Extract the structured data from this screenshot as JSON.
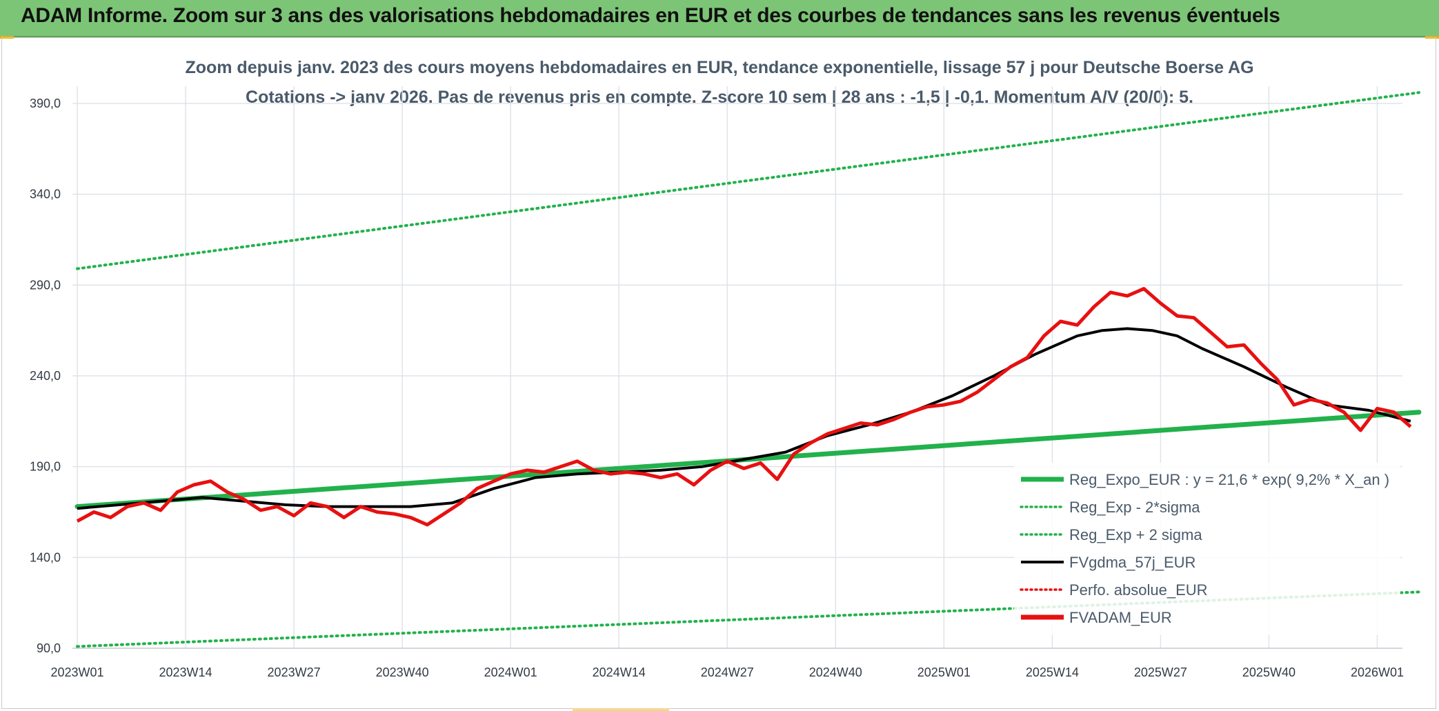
{
  "banner": {
    "title": "ADAM Informe. Zoom sur 3 ans des valorisations hebdomadaires en EUR et des courbes de tendances sans les revenus éventuels"
  },
  "colors": {
    "banner": "#7cc576",
    "reg_expo": "#22b14c",
    "band": "#22b14c",
    "fvgdma": "#000000",
    "perfo": "#e81010",
    "fvadam": "#e81010",
    "grid": "#dfe3e8"
  },
  "chart_data": {
    "type": "line",
    "title_line1": "Zoom depuis janv. 2023 des cours moyens hebdomadaires en EUR, tendance exponentielle, lissage 57 j pour Deutsche Boerse AG",
    "title_line2": "Cotations -> janv 2026. Pas de revenus pris en compte. Z-score 10 sem | 28 ans : -1,5 | -0,1. Momentum A/V (20/0): 5.",
    "xlabel": "",
    "ylabel": "",
    "ylim": [
      90,
      390
    ],
    "y_ticks": [
      "90,0",
      "140,0",
      "190,0",
      "240,0",
      "290,0",
      "340,0",
      "390,0"
    ],
    "y_tick_values": [
      90,
      140,
      190,
      240,
      290,
      340,
      390
    ],
    "x_ticks": [
      "2023W01",
      "2023W14",
      "2023W27",
      "2023W40",
      "2024W01",
      "2024W14",
      "2024W27",
      "2024W40",
      "2025W01",
      "2025W14",
      "2025W27",
      "2025W40",
      "2026W01"
    ],
    "x_tick_weeks": [
      0,
      13,
      26,
      39,
      52,
      65,
      78,
      91,
      104,
      117,
      130,
      143,
      156
    ],
    "x_range_weeks": [
      0,
      161
    ],
    "grid": true,
    "legend_position": "right",
    "legend": [
      {
        "label": "Reg_Expo_EUR : y = 21,6 * exp( 9,2% *  X_an )",
        "style": "solid-thick",
        "color": "#22b14c"
      },
      {
        "label": "Reg_Exp - 2*sigma",
        "style": "dotted",
        "color": "#22b14c"
      },
      {
        "label": "Reg_Exp + 2 sigma",
        "style": "dotted",
        "color": "#22b14c"
      },
      {
        "label": "FVgdma_57j_EUR",
        "style": "solid",
        "color": "#000000"
      },
      {
        "label": "Perfo. absolue_EUR",
        "style": "dotted",
        "color": "#e81010"
      },
      {
        "label": "FVADAM_EUR",
        "style": "solid-thick",
        "color": "#e81010"
      }
    ],
    "series": [
      {
        "name": "Reg_Expo_EUR : y = 21,6 * exp( 9,2% *  X_an )",
        "x": [
          0,
          161
        ],
        "y": [
          168,
          220
        ]
      },
      {
        "name": "Reg_Exp - 2*sigma",
        "x": [
          0,
          161
        ],
        "y": [
          91,
          121
        ]
      },
      {
        "name": "Reg_Exp + 2 sigma",
        "x": [
          0,
          161
        ],
        "y": [
          299,
          396
        ]
      },
      {
        "name": "FVgdma_57j_EUR",
        "x": [
          0,
          5,
          10,
          15,
          20,
          25,
          30,
          35,
          40,
          45,
          50,
          55,
          60,
          65,
          70,
          75,
          80,
          85,
          90,
          95,
          100,
          105,
          110,
          115,
          120,
          123,
          126,
          129,
          132,
          135,
          140,
          145,
          150,
          155,
          160
        ],
        "y": [
          167,
          169,
          171,
          173,
          171,
          169,
          168,
          168,
          168,
          170,
          178,
          184,
          186,
          187,
          188,
          190,
          194,
          198,
          207,
          213,
          220,
          229,
          240,
          252,
          262,
          265,
          266,
          265,
          262,
          255,
          245,
          234,
          224,
          221,
          215
        ]
      },
      {
        "name": "FVADAM_EUR",
        "x": [
          0,
          2,
          4,
          6,
          8,
          10,
          12,
          14,
          16,
          18,
          20,
          22,
          24,
          26,
          28,
          30,
          32,
          34,
          36,
          38,
          40,
          42,
          44,
          46,
          48,
          50,
          52,
          54,
          56,
          58,
          60,
          62,
          64,
          66,
          68,
          70,
          72,
          74,
          76,
          78,
          80,
          82,
          84,
          86,
          88,
          90,
          92,
          94,
          96,
          98,
          100,
          102,
          104,
          106,
          108,
          110,
          112,
          114,
          116,
          118,
          120,
          122,
          124,
          126,
          128,
          130,
          132,
          134,
          136,
          138,
          140,
          142,
          144,
          146,
          148,
          150,
          152,
          154,
          156,
          158,
          160
        ],
        "y": [
          160,
          165,
          162,
          168,
          170,
          166,
          176,
          180,
          182,
          176,
          172,
          166,
          168,
          163,
          170,
          168,
          162,
          168,
          165,
          164,
          162,
          158,
          164,
          170,
          178,
          182,
          186,
          188,
          187,
          190,
          193,
          188,
          186,
          187,
          186,
          184,
          186,
          180,
          188,
          193,
          189,
          192,
          183,
          197,
          203,
          208,
          211,
          214,
          213,
          216,
          220,
          223,
          224,
          226,
          231,
          238,
          245,
          250,
          262,
          270,
          268,
          278,
          286,
          284,
          288,
          280,
          273,
          272,
          264,
          256,
          257,
          247,
          238,
          224,
          227,
          225,
          220,
          210,
          222,
          220,
          212
        ]
      }
    ]
  }
}
